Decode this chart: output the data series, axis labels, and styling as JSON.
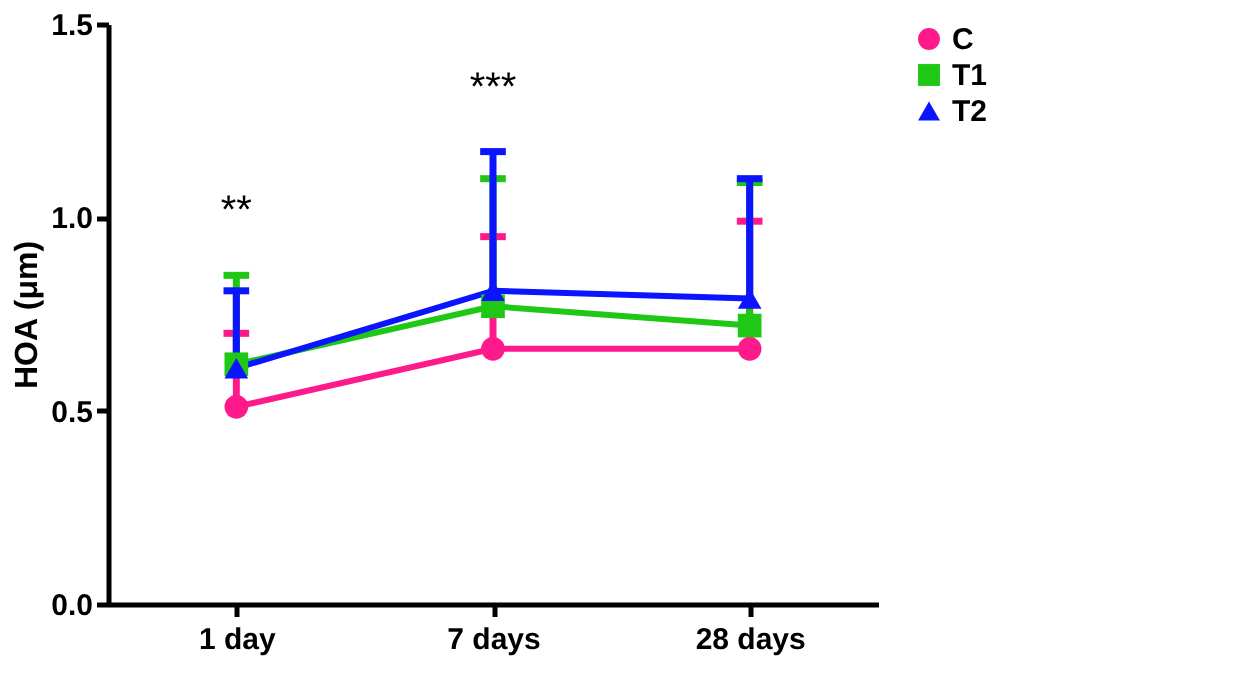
{
  "chart_data": {
    "type": "line",
    "ylabel": "HOA (μm)",
    "categories": [
      "1 day",
      "7 days",
      "28 days"
    ],
    "series": [
      {
        "name": "C",
        "color": "#ff1a8c",
        "marker": "circle",
        "values": [
          0.51,
          0.66,
          0.66
        ],
        "errors": [
          [
            0.51,
            0.7
          ],
          [
            0.66,
            0.95
          ],
          [
            0.66,
            0.99
          ]
        ]
      },
      {
        "name": "T1",
        "color": "#1ec814",
        "marker": "square",
        "values": [
          0.62,
          0.77,
          0.72
        ],
        "errors": [
          [
            0.62,
            0.85
          ],
          [
            0.77,
            1.1
          ],
          [
            0.72,
            1.09
          ]
        ]
      },
      {
        "name": "T2",
        "color": "#0a14ff",
        "marker": "triangle",
        "values": [
          0.61,
          0.81,
          0.79
        ],
        "errors": [
          [
            0.61,
            0.81
          ],
          [
            0.81,
            1.17
          ],
          [
            0.79,
            1.1
          ]
        ]
      }
    ],
    "ylim": [
      0,
      1.5
    ],
    "yticks": [
      {
        "value": 0,
        "label": "0.0"
      },
      {
        "value": 0.5,
        "label": "0.5"
      },
      {
        "value": 1,
        "label": "1.0"
      },
      {
        "value": 1.5,
        "label": "1.5"
      }
    ],
    "grid": false,
    "legend": "top right",
    "annotations": [
      "**",
      "***"
    ]
  }
}
